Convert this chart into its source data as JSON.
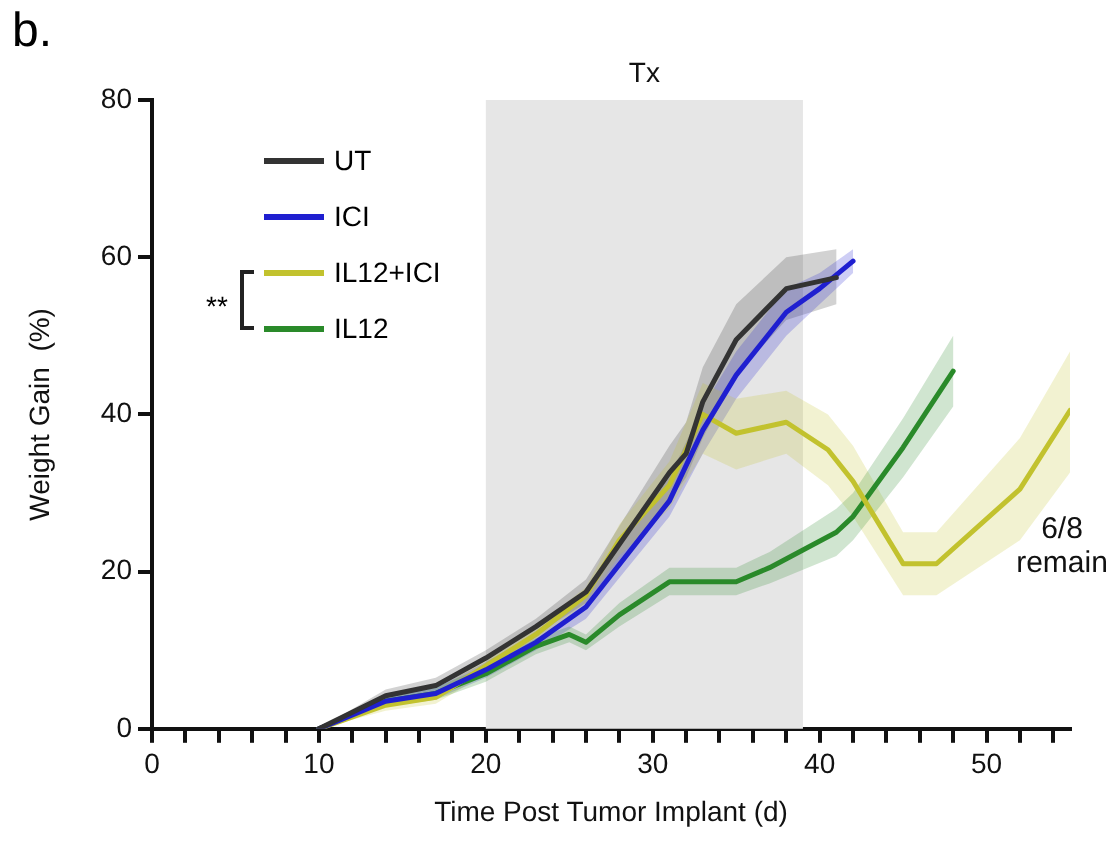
{
  "chart_data": {
    "type": "line",
    "title": "b.",
    "xlabel": "Time Post Tumor Implant (d)",
    "ylabel": "Weight Gain  (%)",
    "xlim": [
      0,
      55
    ],
    "ylim": [
      0,
      80
    ],
    "xticks": [
      0,
      {
        "value": 2,
        "label": null
      },
      {
        "value": 4,
        "label": null
      },
      {
        "value": 6,
        "label": null
      },
      {
        "value": 8,
        "label": null
      },
      10,
      {
        "value": 12,
        "label": null
      },
      {
        "value": 14,
        "label": null
      },
      {
        "value": 16,
        "label": null
      },
      {
        "value": 18,
        "label": null
      },
      20,
      {
        "value": 22,
        "label": null
      },
      {
        "value": 24,
        "label": null
      },
      {
        "value": 26,
        "label": null
      },
      {
        "value": 28,
        "label": null
      },
      30,
      {
        "value": 32,
        "label": null
      },
      {
        "value": 34,
        "label": null
      },
      {
        "value": 36,
        "label": null
      },
      {
        "value": 38,
        "label": null
      },
      40,
      {
        "value": 42,
        "label": null
      },
      {
        "value": 44,
        "label": null
      },
      {
        "value": 46,
        "label": null
      },
      {
        "value": 48,
        "label": null
      },
      50,
      {
        "value": 52,
        "label": null
      },
      {
        "value": 54,
        "label": null
      }
    ],
    "yticks": [
      0,
      20,
      40,
      60,
      80
    ],
    "grid": false,
    "legend": "top left",
    "marker": "none",
    "line_style": "solid",
    "bands": [
      {
        "axis": "x",
        "from": 20,
        "to": 39,
        "label": "Tx",
        "color": "#e6e6e6"
      }
    ],
    "annotations": [
      "**",
      "6/8 remain"
    ],
    "series": [
      {
        "name": "UT",
        "color": "#333333",
        "x": [
          10,
          14,
          17,
          20,
          23,
          26,
          31,
          32,
          33,
          35,
          38,
          41
        ],
        "values": [
          0,
          4.2,
          5.5,
          9,
          13,
          17.4,
          32.6,
          35,
          41.6,
          49.5,
          56,
          57.4
        ],
        "lower": [
          0,
          3.5,
          4.5,
          8,
          12,
          16,
          29,
          32,
          37,
          45,
          52,
          54
        ],
        "upper": [
          0,
          5,
          6.5,
          10,
          14,
          19,
          36,
          39,
          46,
          54,
          60,
          61
        ]
      },
      {
        "name": "ICI",
        "color": "#1f1fd0",
        "x": [
          10,
          14,
          17,
          20,
          23,
          26,
          31,
          33,
          35,
          38,
          40,
          42
        ],
        "values": [
          0,
          3.5,
          4.5,
          7.5,
          11,
          15.5,
          29,
          38,
          45,
          53,
          56,
          59.5
        ],
        "lower": [
          0,
          2.8,
          3.8,
          6.5,
          10,
          14,
          27,
          35,
          42,
          50,
          54,
          58
        ],
        "upper": [
          0,
          4.2,
          5.2,
          8.5,
          12,
          17,
          32,
          41,
          48,
          56,
          58,
          61
        ]
      },
      {
        "name": "IL12+ICI",
        "color": "#c2c22e",
        "x": [
          10,
          14,
          17,
          20,
          23,
          26,
          28,
          31,
          33,
          35,
          38,
          40.5,
          42,
          45,
          47,
          52,
          55
        ],
        "values": [
          0,
          3,
          4,
          8,
          12,
          17,
          24,
          31,
          40,
          37.6,
          39,
          35.5,
          31.5,
          21,
          21,
          30.5,
          40.5
        ],
        "lower": [
          0,
          2.3,
          3.2,
          7,
          11,
          16,
          22,
          28,
          35,
          33,
          35,
          31,
          27,
          17,
          17,
          24,
          32.6
        ],
        "upper": [
          0,
          3.7,
          4.8,
          9,
          13,
          18,
          26,
          34,
          44,
          42,
          43,
          40,
          36,
          25,
          25,
          37,
          48
        ]
      },
      {
        "name": "IL12",
        "color": "#2a8a2a",
        "x": [
          10,
          14,
          17,
          20,
          23,
          25,
          26,
          28,
          31,
          35,
          37,
          41,
          42,
          45,
          48
        ],
        "values": [
          0,
          3.5,
          4.5,
          7,
          10.5,
          12,
          11,
          14.5,
          18.7,
          18.7,
          20.5,
          25,
          27,
          35.8,
          45.5
        ],
        "lower": [
          0,
          2.8,
          3.7,
          6,
          9.5,
          11,
          10,
          13,
          17,
          17,
          18.5,
          22,
          24,
          32,
          41
        ],
        "upper": [
          0,
          4.2,
          5.3,
          8,
          11.5,
          13,
          12,
          16,
          20.5,
          20.5,
          22.5,
          28,
          30,
          39.5,
          50
        ]
      }
    ]
  }
}
